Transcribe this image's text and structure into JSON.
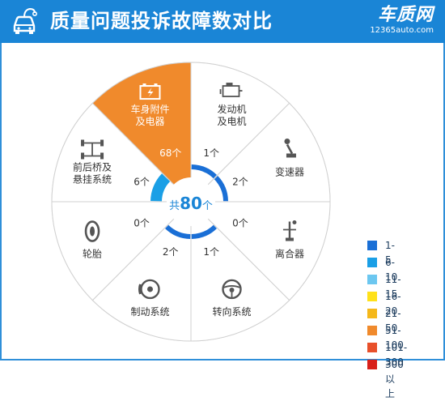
{
  "header": {
    "title": "质量问题投诉故障数对比",
    "brand_name": "车质网",
    "brand_site": "12365auto.com"
  },
  "center": {
    "prefix": "共",
    "total": "80",
    "suffix": "个"
  },
  "colors": {
    "header_bg": "#1a85d6",
    "accent_blue": "#1a7fe0",
    "highlight_orange": "#f08a2c",
    "sector_border": "#c9c9c9"
  },
  "chart_data": {
    "type": "radial-sector",
    "total": 80,
    "sectors": [
      {
        "name_lines": [
          "发动机",
          "及电机"
        ],
        "count": 1,
        "count_label": "1个",
        "icon": "engine-icon",
        "bin": "1-5"
      },
      {
        "name_lines": [
          "变速器"
        ],
        "count": 2,
        "count_label": "2个",
        "icon": "gear-shifter-icon",
        "bin": "1-5"
      },
      {
        "name_lines": [
          "离合器"
        ],
        "count": 0,
        "count_label": "0个",
        "icon": "clutch-icon",
        "bin": null
      },
      {
        "name_lines": [
          "转向系统"
        ],
        "count": 1,
        "count_label": "1个",
        "icon": "steering-wheel-icon",
        "bin": "1-5"
      },
      {
        "name_lines": [
          "制动系统"
        ],
        "count": 2,
        "count_label": "2个",
        "icon": "brake-disc-icon",
        "bin": "1-5"
      },
      {
        "name_lines": [
          "轮胎"
        ],
        "count": 0,
        "count_label": "0个",
        "icon": "tire-icon",
        "bin": null
      },
      {
        "name_lines": [
          "前后桥及",
          "悬挂系统"
        ],
        "count": 6,
        "count_label": "6个",
        "icon": "axle-icon",
        "bin": "6-10"
      },
      {
        "name_lines": [
          "车身附件",
          "及电器"
        ],
        "count": 68,
        "count_label": "68个",
        "icon": "battery-icon",
        "bin": "51-100"
      }
    ],
    "legend": [
      {
        "label": "1-5",
        "color": "#1a6fd6"
      },
      {
        "label": "6-10",
        "color": "#1a9fe6"
      },
      {
        "label": "11-15",
        "color": "#6cc7f0"
      },
      {
        "label": "16-20",
        "color": "#ffe11a"
      },
      {
        "label": "21-50",
        "color": "#f5b81a"
      },
      {
        "label": "51-100",
        "color": "#f08a2c"
      },
      {
        "label": "101-300",
        "color": "#e8502a"
      },
      {
        "label": "300以上",
        "color": "#d8201a"
      }
    ]
  }
}
